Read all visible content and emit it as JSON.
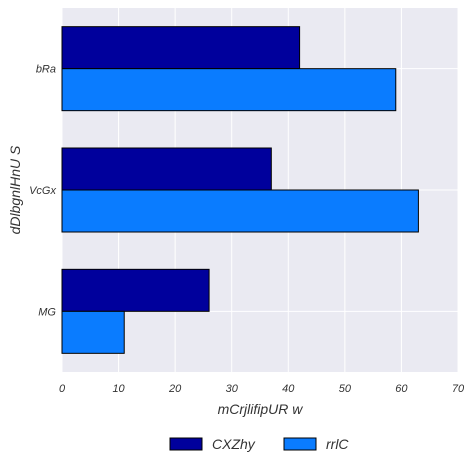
{
  "chart_data": {
    "type": "bar",
    "orientation": "horizontal",
    "title": "",
    "xlabel": "mCrjlifipUR w",
    "ylabel": "dDlbgnlHnU S",
    "categories": [
      "bRa",
      "VcGx",
      "MG"
    ],
    "xlim": [
      0,
      70
    ],
    "xticks": [
      0,
      10,
      20,
      30,
      40,
      50,
      60,
      70
    ],
    "grid": true,
    "legend_position": "bottom-center",
    "series": [
      {
        "name": "CXZhy",
        "color": "#00009C",
        "values": [
          42,
          37,
          26
        ]
      },
      {
        "name": "rrlC",
        "color": "#0A7CFF",
        "values": [
          59,
          63,
          11
        ]
      }
    ],
    "background_color": "#EAEAF2"
  }
}
